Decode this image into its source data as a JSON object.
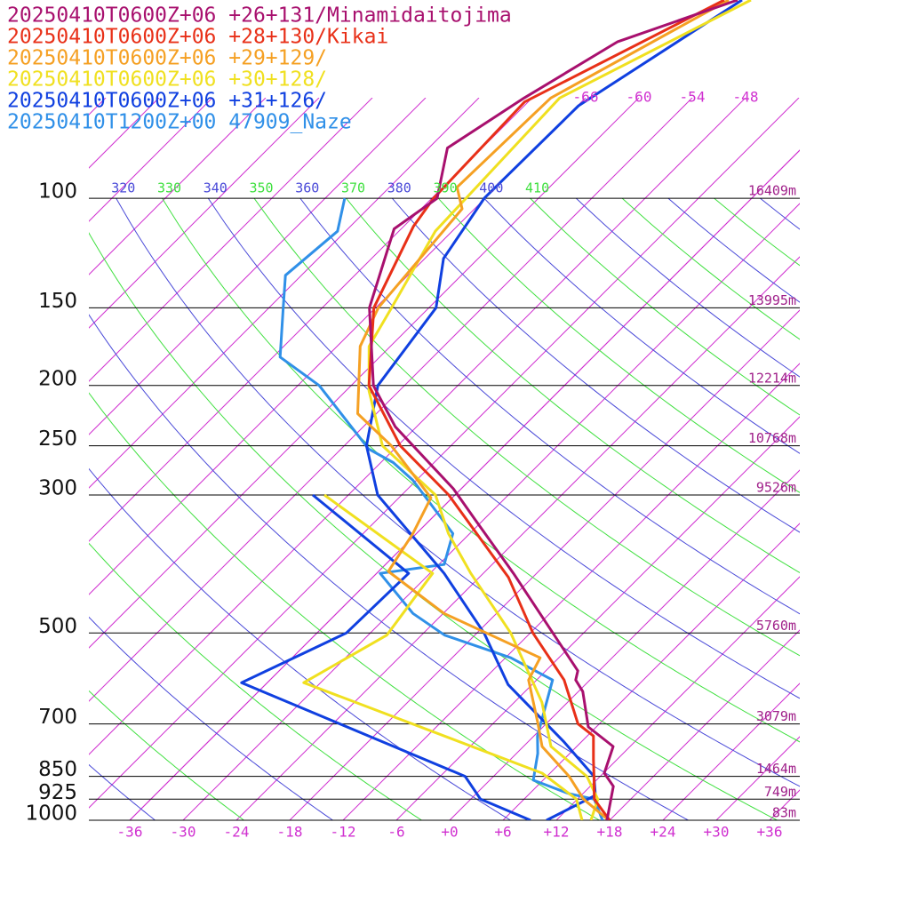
{
  "chart_data": {
    "type": "skewt",
    "ylim": [
      1000,
      48
    ],
    "xlim": [
      -40.6,
      39.4
    ],
    "log_y": true,
    "yticks": [
      100,
      150,
      200,
      250,
      300,
      500,
      700,
      850,
      925,
      1000
    ],
    "heights": [
      "16409m",
      "13995m",
      "12214m",
      "10768m",
      "9526m",
      "5760m",
      "3079m",
      "1464m",
      "749m",
      "83m"
    ],
    "xticks": [
      -36,
      -30,
      -24,
      -18,
      -12,
      -6,
      {
        "value": 0,
        "label": "+0"
      },
      {
        "value": 6,
        "label": "+6"
      },
      {
        "value": 12,
        "label": "+12"
      },
      {
        "value": 18,
        "label": "+18"
      },
      {
        "value": 24,
        "label": "+24"
      },
      {
        "value": 30,
        "label": "+30"
      },
      {
        "value": 36,
        "label": "+36"
      }
    ],
    "isotherm_labels": [
      -66,
      -60,
      -54,
      -48
    ],
    "theta_labels": [
      320,
      330,
      340,
      350,
      360,
      370,
      380,
      390,
      400,
      410
    ],
    "isotherm_color": "#d030d0",
    "theta_colors": [
      "#4a4ad8",
      "#40e040"
    ],
    "series": [
      {
        "name": "20250410T0600Z+06 +26+131/Minamidaitojima",
        "color": "#a8106e",
        "pressure": [
          1000,
          882,
          840,
          761,
          708,
          621,
          595,
          575,
          401,
          329,
          293,
          233,
          200,
          150,
          112,
          100,
          83,
          69,
          56,
          48
        ],
        "temperature": [
          17.7,
          14.6,
          12.1,
          10.1,
          5.1,
          0.5,
          -1.6,
          -2.4,
          -20.6,
          -30.9,
          -36.9,
          -50.4,
          -57.5,
          -66.7,
          -72.8,
          -71.4,
          -75.9,
          -72.9,
          -68.7,
          -59.9
        ]
      },
      {
        "name": "20250410T0600Z+06 +28+130/Kikai",
        "color": "#e83018",
        "pressure": [
          1000,
          925,
          850,
          800,
          732,
          700,
          595,
          500,
          407,
          300,
          250,
          200,
          150,
          111,
          100,
          70,
          48
        ],
        "temperature": [
          18.0,
          13.9,
          11.3,
          9.4,
          6.7,
          3.6,
          -2.9,
          -11.7,
          -20.7,
          -36.7,
          -47.7,
          -58.0,
          -66.2,
          -70.9,
          -71.8,
          -72.4,
          -61.4
        ]
      },
      {
        "name": "20250410T0600Z+06 +29+129/",
        "color": "#f5a023",
        "pressure": [
          1000,
          925,
          850,
          761,
          700,
          595,
          548,
          465,
          398,
          346,
          303,
          250,
          222,
          173,
          150,
          104,
          96,
          69,
          48
        ],
        "temperature": [
          17.9,
          12.7,
          8.5,
          2.1,
          -0.9,
          -6.9,
          -8.1,
          -23.9,
          -34.9,
          -36.4,
          -38.4,
          -48.7,
          -56.1,
          -63.4,
          -65.7,
          -67.4,
          -70.4,
          -69.9,
          -60.9
        ]
      },
      {
        "name": "20250410T0600Z+06 +30+128/",
        "color": "#f0e020",
        "pressure": [
          1000,
          925,
          850,
          761,
          646,
          500,
          401,
          346,
          300,
          250,
          204,
          173,
          150,
          113,
          69,
          48
        ],
        "temperature": [
          15.9,
          14.3,
          10.5,
          3.1,
          -2.9,
          -14.2,
          -25.4,
          -32.4,
          -38.2,
          -49.7,
          -57.4,
          -62.4,
          -64.2,
          -67.9,
          -68.9,
          -58.4
        ],
        "dewpoint_pressure": [
          1000,
          925,
          840,
          601,
          504,
          401,
          300
        ],
        "dewpoint": [
          14.9,
          11.9,
          5.1,
          -31.9,
          -27.9,
          -29.7,
          -50.7
        ]
      },
      {
        "name": "20250410T0600Z+06 +31+126/",
        "color": "#1040e0",
        "pressure": [
          1000,
          912,
          850,
          749,
          605,
          500,
          401,
          300,
          250,
          200,
          150,
          125,
          100,
          71,
          48
        ],
        "temperature": [
          10.9,
          13.6,
          11.3,
          4.1,
          -8.7,
          -17.2,
          -28.4,
          -44.7,
          -51.5,
          -57.0,
          -59.2,
          -63.9,
          -66.1,
          -65.9,
          -59.4
        ],
        "dewpoint_pressure": [
          1000,
          925,
          850,
          601,
          500,
          401,
          300
        ],
        "dewpoint": [
          9.1,
          1.1,
          -3.2,
          -38.9,
          -32.7,
          -32.4,
          -52.0
        ]
      },
      {
        "name": "20250410T1200Z+00 47909_Naze",
        "color": "#3090e8",
        "pressure": [
          1000,
          925,
          906,
          862,
          781,
          732,
          595,
          548,
          504,
          465,
          401,
          388,
          346,
          284,
          266,
          253,
          200,
          180,
          150,
          133,
          113,
          100
        ],
        "temperature": [
          17.2,
          13.9,
          10.4,
          4.9,
          2.4,
          0.4,
          -4.2,
          -11.4,
          -21.4,
          -27.4,
          -35.6,
          -29.4,
          -31.9,
          -42.4,
          -46.6,
          -50.9,
          -63.6,
          -71.2,
          -76.4,
          -79.8,
          -78.9,
          -81.8
        ]
      }
    ]
  }
}
